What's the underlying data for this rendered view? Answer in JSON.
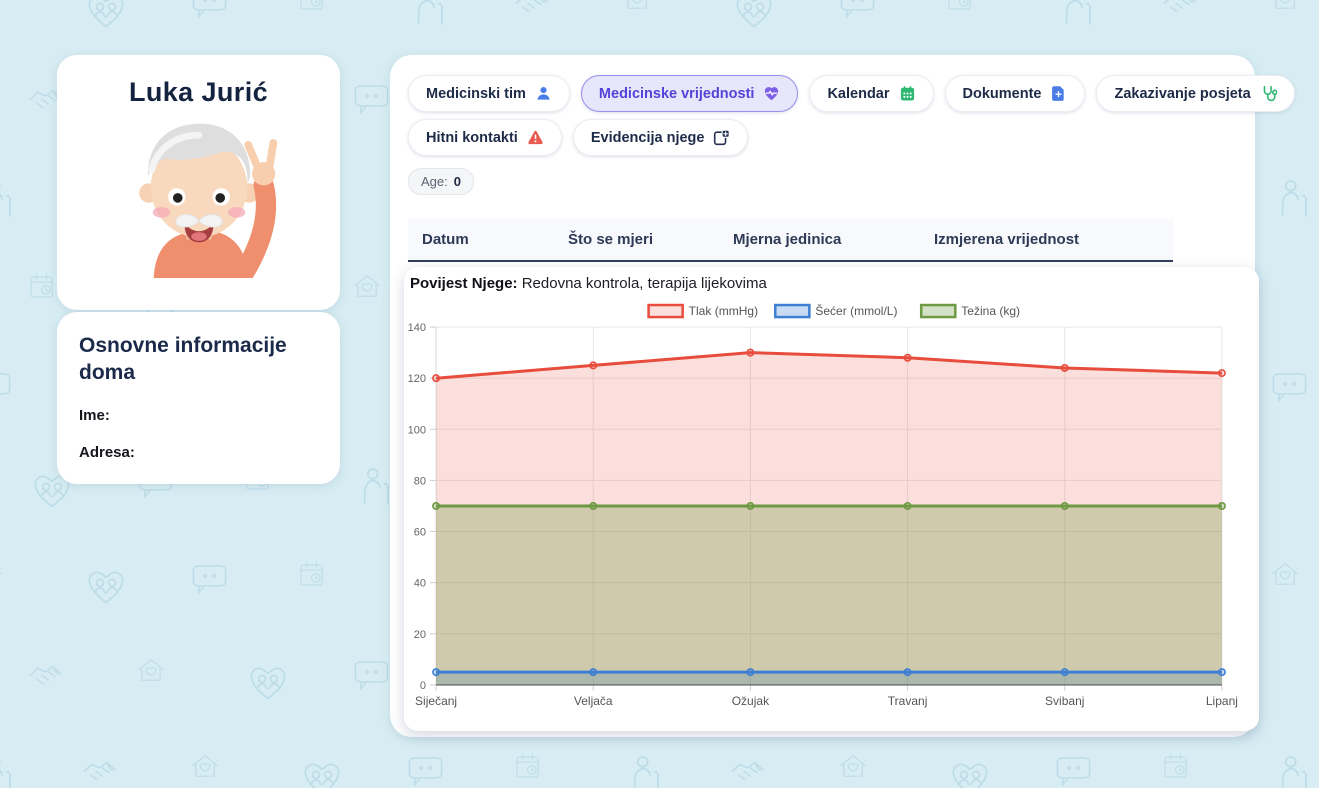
{
  "patient": {
    "name": "Luka Jurić"
  },
  "sidebar": {
    "info_card": {
      "title": "Osnovne informacije doma",
      "fields": [
        {
          "label": "Ime:"
        },
        {
          "label": "Adresa:"
        }
      ]
    }
  },
  "header": {
    "tab_rows": [
      [
        {
          "label": "Medicinski tim",
          "icon": "team-icon",
          "icon_color": "#4a7de8",
          "active": false
        },
        {
          "label": "Medicinske vrijednosti",
          "icon": "heart-pulse-icon",
          "icon_color": "#7d5fe8",
          "active": true
        },
        {
          "label": "Kalendar",
          "icon": "calendar-icon",
          "icon_color": "#2eb872",
          "active": false
        },
        {
          "label": "Dokumente",
          "icon": "document-icon",
          "icon_color": "#4a7de8",
          "active": false
        },
        {
          "label": "Zakazivanje posjeta",
          "icon": "stethoscope-icon",
          "icon_color": "#2eb872",
          "active": false
        }
      ],
      [
        {
          "label": "Hitni kontakti",
          "icon": "warning-icon",
          "icon_color": "#e85a4f",
          "active": false
        },
        {
          "label": "Evidencija njege",
          "icon": "care-log-icon",
          "icon_color": "#253050",
          "active": false
        }
      ]
    ],
    "age_badge": {
      "label": "Age:",
      "value": "0"
    }
  },
  "table": {
    "headers": [
      "Datum",
      "Što se mjeri",
      "Mjerna jedinica",
      "Izmjerena vrijednost"
    ]
  },
  "history": {
    "label": "Povijest Njege:",
    "value": "Redovna kontrola, terapija lijekovima"
  },
  "colors": {
    "page_bg": "#d7edf3",
    "active_tab_bg": "#e8e6fb",
    "active_tab_border": "#988ff0",
    "active_tab_text": "#5244d8"
  },
  "chart_data": {
    "type": "line",
    "categories": [
      "Siječanj",
      "Veljača",
      "Ožujak",
      "Travanj",
      "Svibanj",
      "Lipanj"
    ],
    "series": [
      {
        "name": "Tlak (mmHg)",
        "color": "#e74c3c",
        "fill": "rgba(231,76,60,0.18)",
        "values": [
          120,
          125,
          130,
          128,
          124,
          122
        ]
      },
      {
        "name": "Šećer (mmol/L)",
        "color": "#3e7fd4",
        "fill": "rgba(62,127,212,0.28)",
        "values": [
          5,
          5,
          5,
          5,
          5,
          5
        ]
      },
      {
        "name": "Težina (kg)",
        "color": "#6d9a42",
        "fill": "rgba(109,154,66,0.30)",
        "values": [
          70,
          70,
          70,
          70,
          70,
          70
        ]
      }
    ],
    "ylim": [
      0,
      140
    ],
    "ytick_step": 20,
    "grid": true,
    "legend_position": "top",
    "xlabel": "",
    "ylabel": ""
  },
  "background_pattern_icons": [
    "house-heart-icon",
    "family-heart-icon",
    "speech-bubble-icon",
    "calendar-clock-icon",
    "person-cane-icon",
    "handshake-icon"
  ]
}
